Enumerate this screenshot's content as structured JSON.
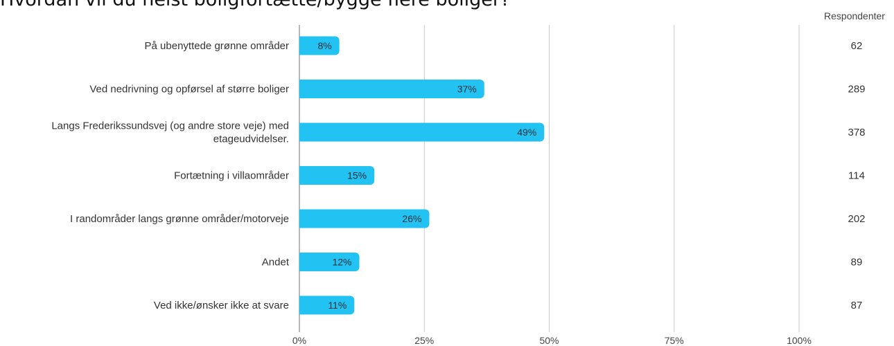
{
  "chart_data": {
    "type": "bar",
    "orientation": "horizontal",
    "title": "Hvordan vil du helst boligfortætte/bygge flere boliger?",
    "categories": [
      [
        "På ubenyttede grønne områder"
      ],
      [
        "Ved  nedrivning og opførsel af større boliger"
      ],
      [
        "Langs Frederikssundsvej (og andre store veje) med",
        "etageudvidelser."
      ],
      [
        "Fortætning i villaområder"
      ],
      [
        "I randområder langs grønne områder/motorveje"
      ],
      [
        "Andet"
      ],
      [
        "Ved ikke/ønsker ikke at svare"
      ]
    ],
    "values": [
      8,
      37,
      49,
      15,
      26,
      12,
      11
    ],
    "value_labels": [
      "8%",
      "37%",
      "49%",
      "15%",
      "26%",
      "12%",
      "11%"
    ],
    "respondents_header": "Respondenter",
    "respondents": [
      "62",
      "289",
      "378",
      "114",
      "202",
      "89",
      "87"
    ],
    "x_ticks": [
      0,
      25,
      50,
      75,
      100
    ],
    "x_tick_labels": [
      "0%",
      "25%",
      "50%",
      "75%",
      "100%"
    ],
    "xlim": [
      0,
      100
    ],
    "grid": true,
    "colors": {
      "bar": "#22c3f2",
      "grid": "#c8c8c8",
      "axis": "#9e9e9e"
    }
  }
}
